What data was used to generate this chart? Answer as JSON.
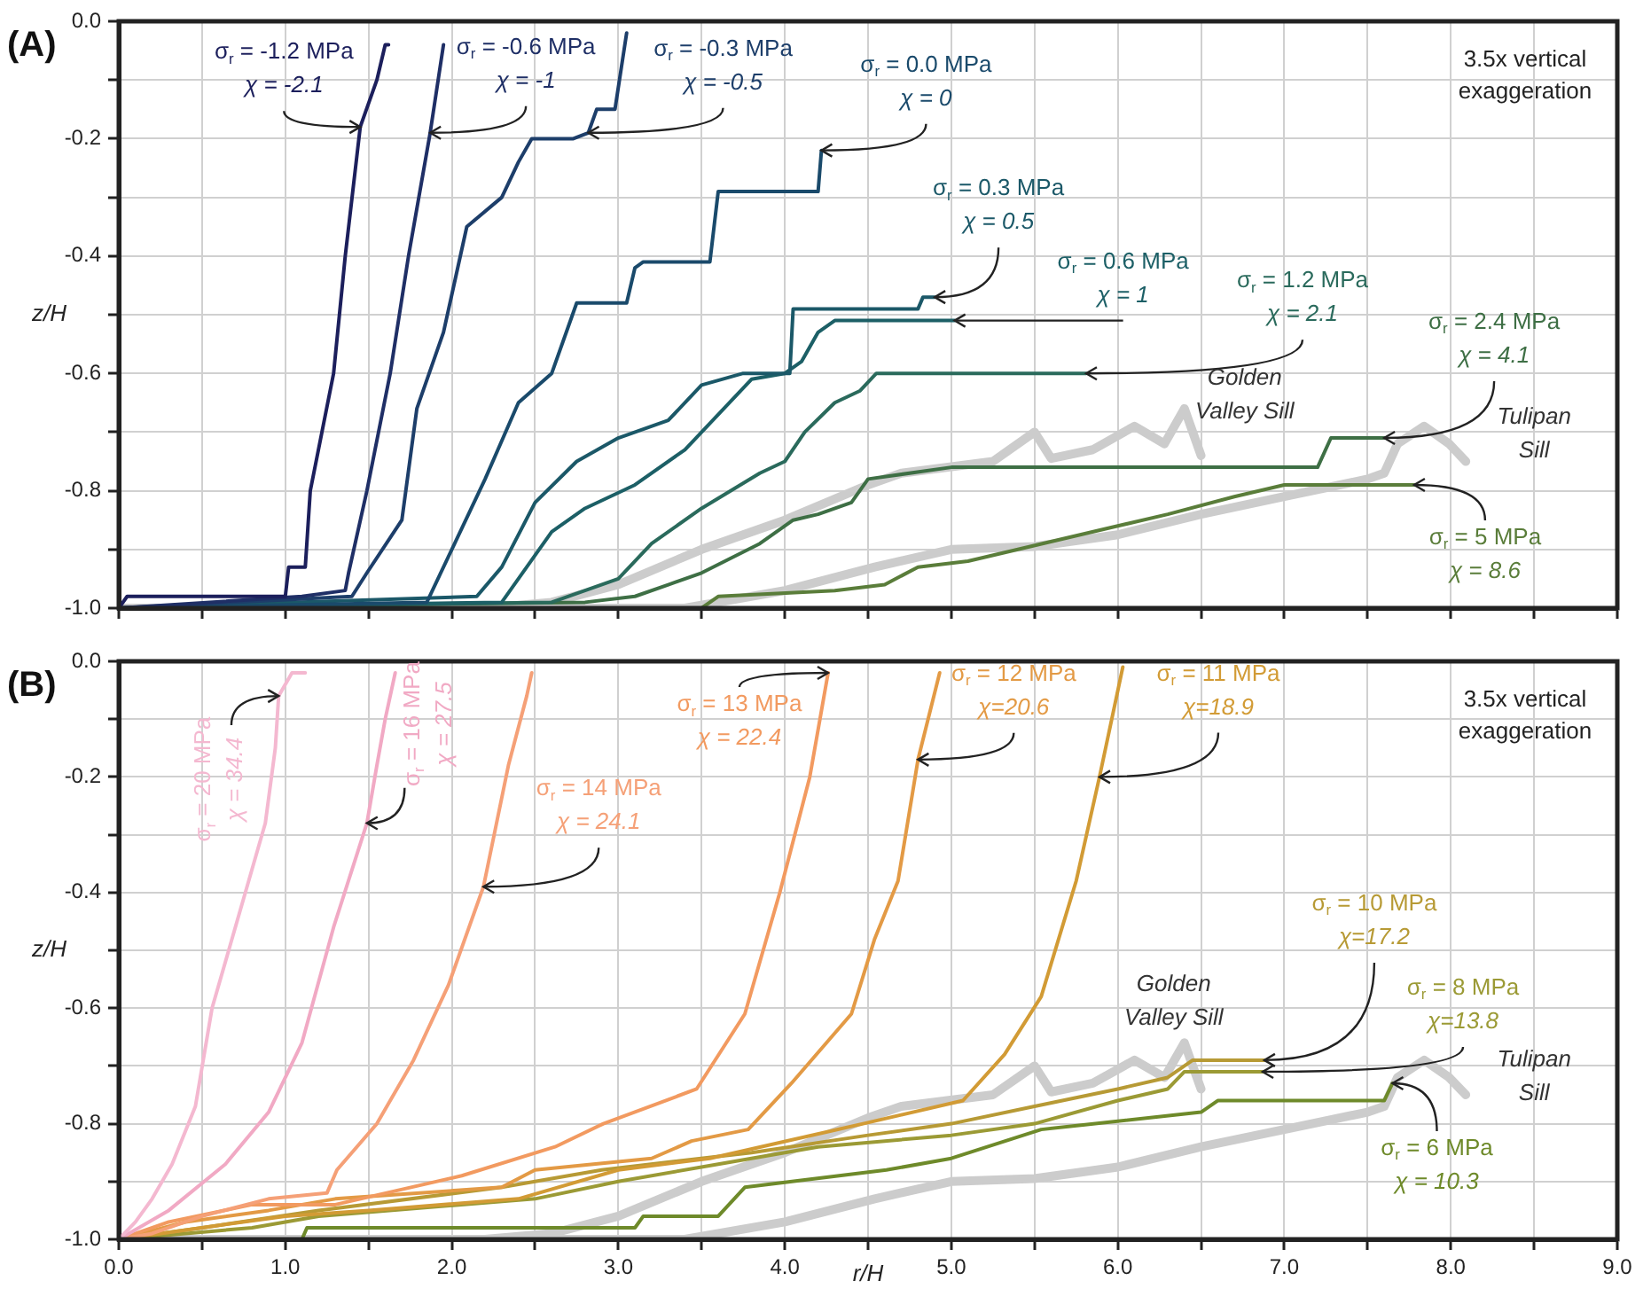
{
  "chart_data": [
    {
      "type": "line",
      "title": "(A)",
      "ylabel": "z/H",
      "xlim": [
        0,
        9
      ],
      "ylim": [
        -1,
        0
      ],
      "grid": true,
      "legend": false,
      "marker": "none",
      "tick_labels": "y",
      "xticks": [
        {
          "value": 0,
          "label": null
        },
        {
          "value": 0.5,
          "label": null
        },
        {
          "value": 1,
          "label": null
        },
        {
          "value": 1.5,
          "label": null
        },
        {
          "value": 2,
          "label": null
        },
        {
          "value": 2.5,
          "label": null
        },
        {
          "value": 3,
          "label": null
        },
        {
          "value": 3.5,
          "label": null
        },
        {
          "value": 4,
          "label": null
        },
        {
          "value": 4.5,
          "label": null
        },
        {
          "value": 5,
          "label": null
        },
        {
          "value": 5.5,
          "label": null
        },
        {
          "value": 6,
          "label": null
        },
        {
          "value": 6.5,
          "label": null
        },
        {
          "value": 7,
          "label": null
        },
        {
          "value": 7.5,
          "label": null
        },
        {
          "value": 8,
          "label": null
        },
        {
          "value": 8.5,
          "label": null
        },
        {
          "value": 9,
          "label": null
        }
      ],
      "yticks": [
        {
          "value": 0,
          "label": "0.0"
        },
        {
          "value": -0.1,
          "label": null
        },
        -0.2,
        {
          "value": -0.3,
          "label": null
        },
        -0.4,
        {
          "value": -0.5,
          "label": null
        },
        -0.6,
        {
          "value": -0.7,
          "label": null
        },
        -0.8,
        {
          "value": -0.9,
          "label": null
        },
        {
          "value": -1,
          "label": "-1.0"
        }
      ],
      "annotations": [
        {
          "text": "σ$_{r}$ = -1.2 MPa\nχ = -2.1",
          "x": 1.45,
          "y": -0.18
        },
        {
          "text": "σ$_{r}$ = -0.6 MPa\nχ = -1",
          "x": 1.87,
          "y": -0.19
        },
        {
          "text": "σ$_{r}$ = -0.3 MPa\nχ = -0.5",
          "x": 2.82,
          "y": -0.19
        },
        {
          "text": "σ$_{r}$ = 0.0 MPa\nχ = 0",
          "x": 4.22,
          "y": -0.22
        },
        {
          "text": "σ$_{r}$ = 0.3 MPa\nχ = 0.5",
          "x": 4.9,
          "y": -0.47
        },
        {
          "text": "σ$_{r}$ = 0.6 MPa\nχ = 1",
          "x": 5.02,
          "y": -0.51
        },
        {
          "text": "σ$_{r}$ = 1.2 MPa\nχ = 2.1",
          "x": 5.81,
          "y": -0.6
        },
        {
          "text": "σ$_{r}$ = 2.4 MPa\nχ = 4.1",
          "x": 7.6,
          "y": -0.71
        },
        {
          "text": "σ$_{r}$ = 5 MPa\nχ = 8.6",
          "x": 7.78,
          "y": -0.79
        },
        "3.5x vertical exaggeration"
      ],
      "series": [
        {
          "color": "#1c1f5c",
          "x": [
            0,
            0.05,
            1.0,
            1.02,
            1.12,
            1.15,
            1.22,
            1.29,
            1.36,
            1.45,
            1.55,
            1.6,
            1.62
          ],
          "values": [
            -1,
            -0.98,
            -0.98,
            -0.93,
            -0.93,
            -0.8,
            -0.7,
            -0.6,
            -0.4,
            -0.18,
            -0.1,
            -0.04,
            -0.04
          ]
        },
        {
          "color": "#1f2f66",
          "x": [
            0,
            1.1,
            1.36,
            1.38,
            1.49,
            1.63,
            1.74,
            1.87,
            1.95
          ],
          "values": [
            -1,
            -0.98,
            -0.97,
            -0.94,
            -0.8,
            -0.6,
            -0.4,
            -0.19,
            -0.04
          ]
        },
        {
          "color": "#1d3e6a",
          "x": [
            0,
            1.4,
            1.49,
            1.7,
            1.79,
            1.95,
            2.09,
            2.3,
            2.4,
            2.48,
            2.73,
            2.82,
            2.87,
            2.98,
            3.05
          ],
          "values": [
            -1,
            -0.98,
            -0.94,
            -0.85,
            -0.66,
            -0.53,
            -0.35,
            -0.3,
            -0.24,
            -0.2,
            -0.2,
            -0.19,
            -0.15,
            -0.15,
            -0.02
          ]
        },
        {
          "color": "#1a4a6b",
          "x": [
            0,
            1.85,
            2.0,
            2.2,
            2.4,
            2.6,
            2.75,
            3.05,
            3.1,
            3.15,
            3.55,
            3.6,
            4.2,
            4.22
          ],
          "values": [
            -1,
            -0.99,
            -0.9,
            -0.78,
            -0.65,
            -0.6,
            -0.48,
            -0.48,
            -0.42,
            -0.41,
            -0.41,
            -0.29,
            -0.29,
            -0.22
          ]
        },
        {
          "color": "#1b5868",
          "x": [
            0,
            2.15,
            2.3,
            2.5,
            2.75,
            3.0,
            3.3,
            3.5,
            3.75,
            3.95,
            4.03,
            4.05,
            4.8,
            4.83,
            4.9
          ],
          "values": [
            -1,
            -0.98,
            -0.93,
            -0.82,
            -0.75,
            -0.71,
            -0.68,
            -0.62,
            -0.6,
            -0.6,
            -0.6,
            -0.49,
            -0.49,
            -0.47,
            -0.47
          ]
        },
        {
          "color": "#1c5f66",
          "x": [
            0,
            2.3,
            2.45,
            2.6,
            2.8,
            3.1,
            3.4,
            3.6,
            3.8,
            4.0,
            4.1,
            4.2,
            4.3,
            5.02
          ],
          "values": [
            -1,
            -0.99,
            -0.93,
            -0.87,
            -0.83,
            -0.79,
            -0.73,
            -0.67,
            -0.61,
            -0.6,
            -0.58,
            -0.53,
            -0.51,
            -0.51
          ]
        },
        {
          "color": "#2a6a5c",
          "x": [
            0,
            2.6,
            3.0,
            3.2,
            3.5,
            3.85,
            4.0,
            4.12,
            4.3,
            4.45,
            4.55,
            5.81
          ],
          "values": [
            -1,
            -0.99,
            -0.95,
            -0.89,
            -0.83,
            -0.77,
            -0.75,
            -0.7,
            -0.65,
            -0.63,
            -0.6,
            -0.6
          ]
        },
        {
          "color": "#3e6f45",
          "x": [
            0,
            2.8,
            3.1,
            3.3,
            3.5,
            3.85,
            4.05,
            4.2,
            4.4,
            4.5,
            5.0,
            7.2,
            7.28,
            7.6
          ],
          "values": [
            -1,
            -0.99,
            -0.98,
            -0.96,
            -0.94,
            -0.89,
            -0.85,
            -0.84,
            -0.82,
            -0.78,
            -0.76,
            -0.76,
            -0.71,
            -0.71
          ]
        },
        {
          "color": "#5a7d3a",
          "x": [
            0,
            3.5,
            3.6,
            4.3,
            4.6,
            4.8,
            5.1,
            5.4,
            5.7,
            6.0,
            6.3,
            6.7,
            7.0,
            7.78
          ],
          "values": [
            -1,
            -1,
            -0.98,
            -0.97,
            -0.96,
            -0.93,
            -0.92,
            -0.9,
            -0.88,
            -0.86,
            -0.84,
            -0.81,
            -0.79,
            -0.79
          ]
        },
        {
          "name": "Golden Valley Sill",
          "color": "#cccccc",
          "x": [
            0,
            2.2,
            2.6,
            3.0,
            3.5,
            4.0,
            4.5,
            4.7,
            5.25,
            5.5,
            5.6,
            5.85,
            6.1,
            6.28,
            6.4,
            6.5
          ],
          "values": [
            -1,
            -1,
            -0.99,
            -0.96,
            -0.9,
            -0.85,
            -0.79,
            -0.77,
            -0.75,
            -0.7,
            -0.745,
            -0.73,
            -0.69,
            -0.72,
            -0.66,
            -0.74
          ]
        },
        {
          "name": "Tulipan Sill",
          "color": "#cccccc",
          "x": [
            0,
            3.4,
            4.0,
            4.54,
            5.0,
            5.5,
            6.0,
            6.5,
            7.0,
            7.5,
            7.6,
            7.68,
            7.84,
            7.99,
            8.09
          ],
          "values": [
            -1,
            -1,
            -0.97,
            -0.93,
            -0.9,
            -0.895,
            -0.875,
            -0.84,
            -0.81,
            -0.78,
            -0.77,
            -0.72,
            -0.69,
            -0.72,
            -0.75
          ]
        }
      ]
    },
    {
      "type": "line",
      "title": "(B)",
      "xlabel": "r/H",
      "ylabel": "z/H",
      "xlim": [
        0,
        9
      ],
      "ylim": [
        -1,
        0
      ],
      "grid": true,
      "legend": false,
      "marker": "none",
      "xticks": [
        {
          "value": 0,
          "label": "0.0"
        },
        {
          "value": 0.5,
          "label": null
        },
        {
          "value": 1,
          "label": "1.0"
        },
        {
          "value": 1.5,
          "label": null
        },
        {
          "value": 2,
          "label": "2.0"
        },
        {
          "value": 2.5,
          "label": null
        },
        {
          "value": 3,
          "label": "3.0"
        },
        {
          "value": 3.5,
          "label": null
        },
        {
          "value": 4,
          "label": "4.0"
        },
        {
          "value": 4.5,
          "label": null
        },
        {
          "value": 5,
          "label": "5.0"
        },
        {
          "value": 5.5,
          "label": null
        },
        {
          "value": 6,
          "label": "6.0"
        },
        {
          "value": 6.5,
          "label": null
        },
        {
          "value": 7,
          "label": "7.0"
        },
        {
          "value": 7.5,
          "label": null
        },
        {
          "value": 8,
          "label": "8.0"
        },
        {
          "value": 8.5,
          "label": null
        },
        {
          "value": 9,
          "label": "9.0"
        }
      ],
      "yticks": [
        {
          "value": 0,
          "label": "0.0"
        },
        {
          "value": -0.1,
          "label": null
        },
        -0.2,
        {
          "value": -0.3,
          "label": null
        },
        -0.4,
        {
          "value": -0.5,
          "label": null
        },
        -0.6,
        {
          "value": -0.7,
          "label": null
        },
        -0.8,
        {
          "value": -0.9,
          "label": null
        },
        {
          "value": -1,
          "label": "-1.0"
        }
      ],
      "annotations": [
        {
          "text": "σ$_{r}$ = 20 MPa\nχ = 34.4",
          "x": 0.96,
          "y": -0.06
        },
        {
          "text": "σ$_{r}$ = 16 MPa\nχ = 27.5",
          "x": 1.49,
          "y": -0.28
        },
        {
          "text": "σ$_{r}$ = 14 MPa\nχ = 24.1",
          "x": 2.19,
          "y": -0.39
        },
        {
          "text": "σ$_{r}$ = 13 MPa\nχ = 22.4",
          "x": 4.26,
          "y": -0.02
        },
        {
          "text": "σ$_{r}$ = 12 MPa\nχ=20.6",
          "x": 4.8,
          "y": -0.17
        },
        {
          "text": "σ$_{r}$ = 11 MPa\nχ=18.9",
          "x": 5.89,
          "y": -0.2
        },
        {
          "text": "σ$_{r}$ = 10 MPa\nχ=17.2",
          "x": 6.88,
          "y": -0.69
        },
        {
          "text": "σ$_{r}$ = 8 MPa\nχ=13.8",
          "x": 6.87,
          "y": -0.71
        },
        {
          "text": "σ$_{r}$ = 6 MPa\nχ = 10.3",
          "x": 7.65,
          "y": -0.73
        },
        "3.5x vertical exaggeration"
      ],
      "series": [
        {
          "color": "#f4b8d0",
          "x": [
            0,
            0.1,
            0.2,
            0.32,
            0.46,
            0.56,
            0.67,
            0.78,
            0.88,
            0.94,
            0.96,
            1.04,
            1.12
          ],
          "values": [
            -1,
            -0.97,
            -0.93,
            -0.87,
            -0.77,
            -0.6,
            -0.49,
            -0.38,
            -0.28,
            -0.15,
            -0.06,
            -0.02,
            -0.02
          ]
        },
        {
          "color": "#f1a9c4",
          "x": [
            0,
            0.3,
            0.64,
            0.9,
            1.1,
            1.29,
            1.49,
            1.55,
            1.6,
            1.66
          ],
          "values": [
            -1,
            -0.95,
            -0.87,
            -0.78,
            -0.66,
            -0.46,
            -0.28,
            -0.18,
            -0.1,
            -0.02
          ]
        },
        {
          "color": "#f5a077",
          "x": [
            0,
            0.2,
            0.5,
            0.9,
            1.25,
            1.31,
            1.55,
            1.77,
            1.98,
            2.19,
            2.34,
            2.45,
            2.48
          ],
          "values": [
            -1,
            -0.99,
            -0.96,
            -0.93,
            -0.92,
            -0.88,
            -0.8,
            -0.69,
            -0.56,
            -0.39,
            -0.18,
            -0.06,
            -0.02
          ]
        },
        {
          "color": "#f29a60",
          "x": [
            0,
            0.3,
            0.8,
            1.3,
            2.06,
            2.62,
            2.91,
            3.47,
            3.76,
            3.97,
            4.15,
            4.26
          ],
          "values": [
            -1,
            -0.97,
            -0.94,
            -0.94,
            -0.89,
            -0.84,
            -0.8,
            -0.74,
            -0.61,
            -0.4,
            -0.2,
            -0.02
          ]
        },
        {
          "color": "#e39a45",
          "x": [
            0,
            0.4,
            0.9,
            1.3,
            2.3,
            2.5,
            3.2,
            3.44,
            3.78,
            4.04,
            4.4,
            4.54,
            4.68,
            4.8,
            4.93
          ],
          "values": [
            -1,
            -0.97,
            -0.95,
            -0.93,
            -0.91,
            -0.88,
            -0.86,
            -0.83,
            -0.81,
            -0.73,
            -0.61,
            -0.48,
            -0.38,
            -0.17,
            -0.02
          ]
        },
        {
          "color": "#d29b35",
          "x": [
            0,
            0.5,
            1.0,
            1.5,
            2.4,
            3.0,
            3.55,
            4.47,
            5.07,
            5.32,
            5.54,
            5.75,
            5.89,
            6.03
          ],
          "values": [
            -1,
            -0.98,
            -0.96,
            -0.95,
            -0.93,
            -0.88,
            -0.86,
            -0.8,
            -0.76,
            -0.68,
            -0.58,
            -0.38,
            -0.2,
            -0.01
          ]
        },
        {
          "color": "#b79a35",
          "x": [
            0,
            0.5,
            1.2,
            2.3,
            2.9,
            3.8,
            4.5,
            5.0,
            5.5,
            6.0,
            6.3,
            6.45,
            6.88
          ],
          "values": [
            -1,
            -0.98,
            -0.95,
            -0.91,
            -0.88,
            -0.85,
            -0.82,
            -0.8,
            -0.77,
            -0.74,
            -0.72,
            -0.69,
            -0.69
          ]
        },
        {
          "color": "#9b9a35",
          "x": [
            0,
            0.8,
            1.2,
            2.5,
            3.0,
            3.6,
            4.2,
            5.0,
            5.5,
            6.0,
            6.3,
            6.4,
            6.87
          ],
          "values": [
            -1,
            -0.98,
            -0.96,
            -0.93,
            -0.9,
            -0.87,
            -0.84,
            -0.82,
            -0.8,
            -0.76,
            -0.74,
            -0.71,
            -0.71
          ]
        },
        {
          "color": "#6e8a2a",
          "x": [
            0,
            1.1,
            1.13,
            3.1,
            3.15,
            3.6,
            3.76,
            4.61,
            5.0,
            5.54,
            6.5,
            6.6,
            7.6,
            7.65
          ],
          "values": [
            -1,
            -1,
            -0.98,
            -0.98,
            -0.96,
            -0.96,
            -0.91,
            -0.88,
            -0.86,
            -0.81,
            -0.78,
            -0.76,
            -0.76,
            -0.73
          ]
        },
        {
          "name": "Golden Valley Sill",
          "color": "#cccccc",
          "x": [
            0,
            2.2,
            2.6,
            3.0,
            3.5,
            4.0,
            4.5,
            4.7,
            5.25,
            5.5,
            5.6,
            5.85,
            6.1,
            6.28,
            6.4,
            6.5
          ],
          "values": [
            -1,
            -1,
            -0.99,
            -0.96,
            -0.9,
            -0.85,
            -0.79,
            -0.77,
            -0.75,
            -0.7,
            -0.745,
            -0.73,
            -0.69,
            -0.72,
            -0.66,
            -0.74
          ]
        },
        {
          "name": "Tulipan Sill",
          "color": "#cccccc",
          "x": [
            0,
            3.4,
            4.0,
            4.54,
            5.0,
            5.5,
            6.0,
            6.5,
            7.0,
            7.5,
            7.6,
            7.68,
            7.84,
            7.99,
            8.09
          ],
          "values": [
            -1,
            -1,
            -0.97,
            -0.93,
            -0.9,
            -0.895,
            -0.875,
            -0.84,
            -0.81,
            -0.78,
            -0.77,
            -0.72,
            -0.69,
            -0.72,
            -0.75
          ]
        }
      ]
    }
  ]
}
